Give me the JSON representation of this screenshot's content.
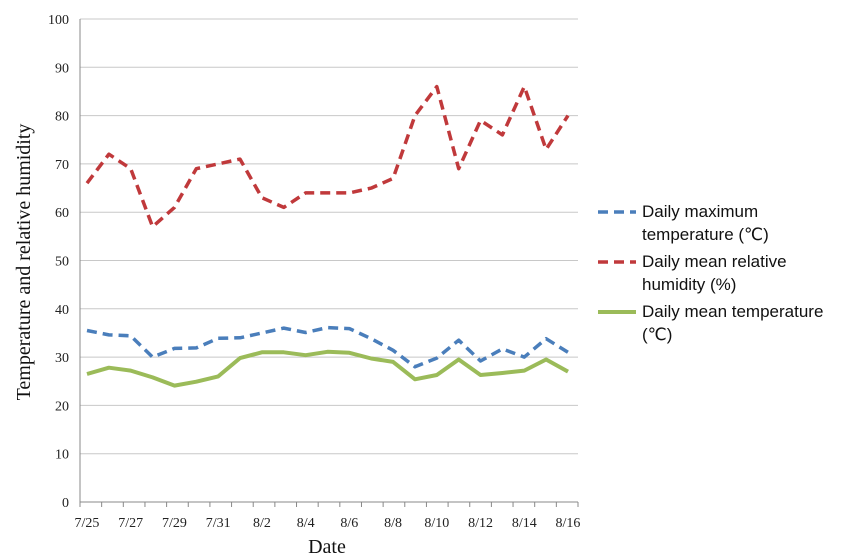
{
  "chart_data": {
    "type": "line",
    "xlabel": "Date",
    "ylabel": "Temperature and relative humidity",
    "ylim": [
      0,
      100
    ],
    "yticks": [
      0,
      10,
      20,
      30,
      40,
      50,
      60,
      70,
      80,
      90,
      100
    ],
    "x": [
      "7/25",
      "7/26",
      "7/27",
      "7/28",
      "7/29",
      "7/30",
      "7/31",
      "8/1",
      "8/2",
      "8/3",
      "8/4",
      "8/5",
      "8/6",
      "8/7",
      "8/8",
      "8/9",
      "8/10",
      "8/11",
      "8/12",
      "8/13",
      "8/14",
      "8/15",
      "8/16"
    ],
    "x_tick_labels": [
      "7/25",
      "7/27",
      "7/29",
      "7/31",
      "8/2",
      "8/4",
      "8/6",
      "8/8",
      "8/10",
      "8/12",
      "8/14",
      "8/16"
    ],
    "grid": "horizontal",
    "legend_position": "right",
    "series": [
      {
        "name": "Daily maximum temperature (℃)",
        "legend_lines": [
          "Daily maximum",
          "temperature (℃)"
        ],
        "color": "#4a7ebb",
        "style": "dashed",
        "values": [
          35.5,
          34.6,
          34.4,
          30.0,
          31.8,
          31.9,
          33.9,
          34.0,
          35.0,
          36.0,
          35.1,
          36.1,
          35.9,
          33.8,
          31.4,
          28.0,
          29.8,
          33.5,
          29.2,
          31.7,
          30.0,
          33.8,
          31.0
        ]
      },
      {
        "name": "Daily mean relative humidity (%)",
        "legend_lines": [
          "Daily mean relative",
          "humidity (%)"
        ],
        "color": "#c0393b",
        "style": "dashed",
        "values": [
          66,
          72,
          69,
          57,
          61,
          69,
          70,
          71,
          63,
          61,
          64,
          64,
          64,
          65,
          67,
          80,
          86,
          69,
          79,
          76,
          86,
          73,
          80
        ]
      },
      {
        "name": "Daily mean temperature (℃)",
        "legend_lines": [
          "Daily mean temperature",
          "(℃)"
        ],
        "color": "#9bbb59",
        "style": "solid",
        "values": [
          26.5,
          27.8,
          27.2,
          25.8,
          24.1,
          24.9,
          26.0,
          29.8,
          31.0,
          31.0,
          30.4,
          31.1,
          30.9,
          29.7,
          29.0,
          25.4,
          26.3,
          29.5,
          26.3,
          26.7,
          27.2,
          29.5,
          27.0
        ]
      }
    ]
  }
}
